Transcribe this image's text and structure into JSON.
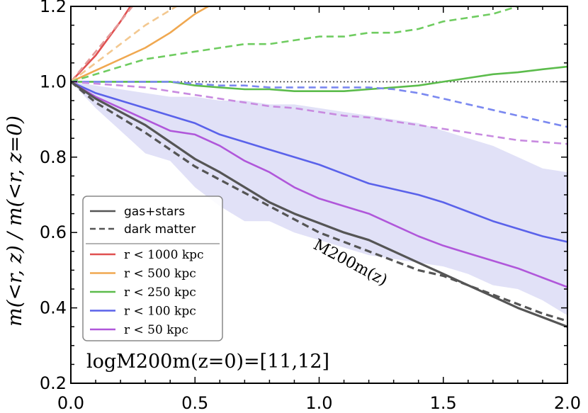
{
  "chart_data": {
    "type": "line",
    "title": "",
    "xlabel": "",
    "ylabel": "m(<r, z) / m(<r, z=0)",
    "xlim": [
      0.0,
      2.0
    ],
    "ylim": [
      0.2,
      1.2
    ],
    "x_ticks": [
      0.0,
      0.5,
      1.0,
      1.5,
      2.0
    ],
    "x_tick_labels": [
      "0.0",
      "0.5",
      "1.0",
      "1.5",
      "2.0"
    ],
    "y_ticks": [
      0.2,
      0.4,
      0.6,
      0.8,
      1.0,
      1.2
    ],
    "y_tick_labels": [
      "0.2",
      "0.4",
      "0.6",
      "0.8",
      "1.0",
      "1.2"
    ],
    "grid": false,
    "reference_line": {
      "y": 1.0,
      "style": "dotted",
      "color": "#444444"
    },
    "band": {
      "name": "M200m(z) dark matter scatter",
      "color": "#c8c8f0",
      "x": [
        0.0,
        0.1,
        0.2,
        0.3,
        0.4,
        0.5,
        0.6,
        0.7,
        0.8,
        0.9,
        1.0,
        1.1,
        1.2,
        1.3,
        1.4,
        1.5,
        1.6,
        1.7,
        1.8,
        1.9,
        2.0
      ],
      "lower": [
        1.0,
        0.93,
        0.87,
        0.81,
        0.79,
        0.72,
        0.67,
        0.63,
        0.63,
        0.6,
        0.58,
        0.56,
        0.54,
        0.53,
        0.52,
        0.51,
        0.49,
        0.46,
        0.45,
        0.42,
        0.38
      ],
      "upper": [
        1.0,
        0.99,
        0.98,
        0.97,
        0.96,
        0.96,
        0.95,
        0.95,
        0.94,
        0.94,
        0.93,
        0.92,
        0.91,
        0.9,
        0.89,
        0.87,
        0.85,
        0.83,
        0.8,
        0.77,
        0.76
      ]
    },
    "series": [
      {
        "name": "r < 1000 kpc",
        "component": "gas+stars",
        "color": "#e05050",
        "style": "solid",
        "x": [
          0.0,
          0.1,
          0.2,
          0.25
        ],
        "y": [
          1.0,
          1.07,
          1.16,
          1.21
        ]
      },
      {
        "name": "r < 1000 kpc",
        "component": "dark matter",
        "color": "#e59a9a",
        "style": "dashed",
        "x": [
          0.0,
          0.1,
          0.2,
          0.26
        ],
        "y": [
          1.0,
          1.08,
          1.16,
          1.21
        ]
      },
      {
        "name": "r < 500 kpc",
        "component": "gas+stars",
        "color": "#f0a850",
        "style": "solid",
        "x": [
          0.0,
          0.1,
          0.2,
          0.3,
          0.4,
          0.5,
          0.58
        ],
        "y": [
          1.0,
          1.03,
          1.06,
          1.09,
          1.13,
          1.18,
          1.21
        ]
      },
      {
        "name": "r < 500 kpc",
        "component": "dark matter",
        "color": "#f3c890",
        "style": "dashed",
        "x": [
          0.0,
          0.1,
          0.2,
          0.3,
          0.4,
          0.45
        ],
        "y": [
          1.0,
          1.05,
          1.1,
          1.15,
          1.19,
          1.21
        ]
      },
      {
        "name": "r < 250 kpc",
        "component": "gas+stars",
        "color": "#5cbc4c",
        "style": "solid",
        "x": [
          0.0,
          0.1,
          0.2,
          0.3,
          0.4,
          0.5,
          0.6,
          0.7,
          0.8,
          0.9,
          1.0,
          1.1,
          1.2,
          1.3,
          1.4,
          1.5,
          1.6,
          1.7,
          1.8,
          1.9,
          2.0
        ],
        "y": [
          1.0,
          1.0,
          1.0,
          1.0,
          1.0,
          0.99,
          0.985,
          0.98,
          0.98,
          0.975,
          0.975,
          0.975,
          0.98,
          0.985,
          0.99,
          1.0,
          1.01,
          1.02,
          1.025,
          1.033,
          1.04
        ]
      },
      {
        "name": "r < 250 kpc",
        "component": "dark matter",
        "color": "#6fcc60",
        "style": "dashed",
        "x": [
          0.0,
          0.1,
          0.2,
          0.3,
          0.4,
          0.5,
          0.6,
          0.7,
          0.8,
          0.9,
          1.0,
          1.1,
          1.2,
          1.3,
          1.4,
          1.5,
          1.6,
          1.7,
          1.8,
          1.9,
          2.0
        ],
        "y": [
          1.0,
          1.02,
          1.04,
          1.06,
          1.07,
          1.08,
          1.09,
          1.1,
          1.1,
          1.11,
          1.12,
          1.12,
          1.13,
          1.13,
          1.14,
          1.16,
          1.17,
          1.18,
          1.2,
          1.21,
          1.22
        ]
      },
      {
        "name": "r < 100 kpc",
        "component": "gas+stars",
        "color": "#5a62ea",
        "style": "solid",
        "x": [
          0.0,
          0.1,
          0.2,
          0.3,
          0.4,
          0.5,
          0.6,
          0.7,
          0.8,
          0.9,
          1.0,
          1.1,
          1.2,
          1.3,
          1.4,
          1.5,
          1.6,
          1.7,
          1.8,
          1.9,
          2.0
        ],
        "y": [
          1.0,
          0.97,
          0.95,
          0.93,
          0.91,
          0.89,
          0.86,
          0.84,
          0.82,
          0.8,
          0.78,
          0.755,
          0.73,
          0.715,
          0.7,
          0.68,
          0.655,
          0.63,
          0.61,
          0.59,
          0.575
        ]
      },
      {
        "name": "r < 100 kpc",
        "component": "dark matter",
        "color": "#7a88f0",
        "style": "dashed",
        "x": [
          0.0,
          0.1,
          0.2,
          0.3,
          0.4,
          0.5,
          0.6,
          0.7,
          0.8,
          0.9,
          1.0,
          1.1,
          1.2,
          1.3,
          1.4,
          1.5,
          1.6,
          1.7,
          1.8,
          1.9,
          2.0
        ],
        "y": [
          1.0,
          1.0,
          1.0,
          1.0,
          1.0,
          0.995,
          0.99,
          0.99,
          0.985,
          0.985,
          0.985,
          0.985,
          0.985,
          0.98,
          0.97,
          0.955,
          0.94,
          0.925,
          0.91,
          0.895,
          0.88
        ]
      },
      {
        "name": "r < 50 kpc",
        "component": "gas+stars",
        "color": "#b057da",
        "style": "solid",
        "x": [
          0.0,
          0.1,
          0.2,
          0.3,
          0.4,
          0.5,
          0.6,
          0.7,
          0.8,
          0.9,
          1.0,
          1.1,
          1.2,
          1.3,
          1.4,
          1.5,
          1.6,
          1.7,
          1.8,
          1.9,
          2.0
        ],
        "y": [
          1.0,
          0.96,
          0.93,
          0.9,
          0.87,
          0.86,
          0.83,
          0.79,
          0.76,
          0.72,
          0.69,
          0.67,
          0.65,
          0.62,
          0.59,
          0.565,
          0.545,
          0.525,
          0.505,
          0.48,
          0.455
        ]
      },
      {
        "name": "r < 50 kpc",
        "component": "dark matter",
        "color": "#c88ae0",
        "style": "dashed",
        "x": [
          0.0,
          0.1,
          0.2,
          0.3,
          0.4,
          0.5,
          0.6,
          0.7,
          0.8,
          0.9,
          1.0,
          1.1,
          1.2,
          1.3,
          1.4,
          1.5,
          1.6,
          1.7,
          1.8,
          1.9,
          2.0
        ],
        "y": [
          1.0,
          0.995,
          0.99,
          0.985,
          0.975,
          0.965,
          0.955,
          0.945,
          0.935,
          0.93,
          0.92,
          0.91,
          0.905,
          0.895,
          0.885,
          0.875,
          0.865,
          0.855,
          0.845,
          0.84,
          0.835
        ]
      },
      {
        "name": "M200m(z)",
        "component": "gas+stars",
        "color": "#555555",
        "style": "solid",
        "x": [
          0.0,
          0.1,
          0.2,
          0.3,
          0.4,
          0.5,
          0.6,
          0.7,
          0.8,
          0.9,
          1.0,
          1.1,
          1.2,
          1.3,
          1.4,
          1.5,
          1.6,
          1.7,
          1.8,
          1.9,
          2.0
        ],
        "y": [
          1.0,
          0.955,
          0.92,
          0.885,
          0.84,
          0.795,
          0.76,
          0.72,
          0.68,
          0.65,
          0.625,
          0.6,
          0.58,
          0.55,
          0.52,
          0.49,
          0.46,
          0.43,
          0.4,
          0.375,
          0.35
        ]
      },
      {
        "name": "M200m(z)",
        "component": "dark matter",
        "color": "#555555",
        "style": "dashed",
        "x": [
          0.0,
          0.1,
          0.2,
          0.3,
          0.4,
          0.5,
          0.6,
          0.7,
          0.8,
          0.9,
          1.0,
          1.1,
          1.2,
          1.3,
          1.4,
          1.5,
          1.6,
          1.7,
          1.8,
          1.9,
          2.0
        ],
        "y": [
          1.0,
          0.945,
          0.905,
          0.865,
          0.82,
          0.775,
          0.74,
          0.705,
          0.67,
          0.635,
          0.6,
          0.575,
          0.55,
          0.525,
          0.5,
          0.485,
          0.46,
          0.435,
          0.41,
          0.385,
          0.365
        ]
      }
    ],
    "legend": {
      "placement": "lower-left",
      "style_entries": [
        {
          "label": "gas+stars",
          "style": "solid",
          "color": "#555555"
        },
        {
          "label": "dark matter",
          "style": "dashed",
          "color": "#555555"
        }
      ],
      "color_entries": [
        {
          "label": "r < 1000 kpc",
          "color": "#e05050"
        },
        {
          "label": "r < 500 kpc",
          "color": "#f0a850"
        },
        {
          "label": "r < 250 kpc",
          "color": "#5cbc4c"
        },
        {
          "label": "r < 100 kpc",
          "color": "#5a62ea"
        },
        {
          "label": "r < 50 kpc",
          "color": "#b057da"
        }
      ]
    },
    "annotations": [
      {
        "text": "M200m(z)",
        "near_x": 1.1,
        "near_y": 0.545,
        "rotation": "along dashed black line"
      },
      {
        "text": "logM200m(z=0)=[11,12]",
        "placement": "bottom-left"
      }
    ]
  }
}
